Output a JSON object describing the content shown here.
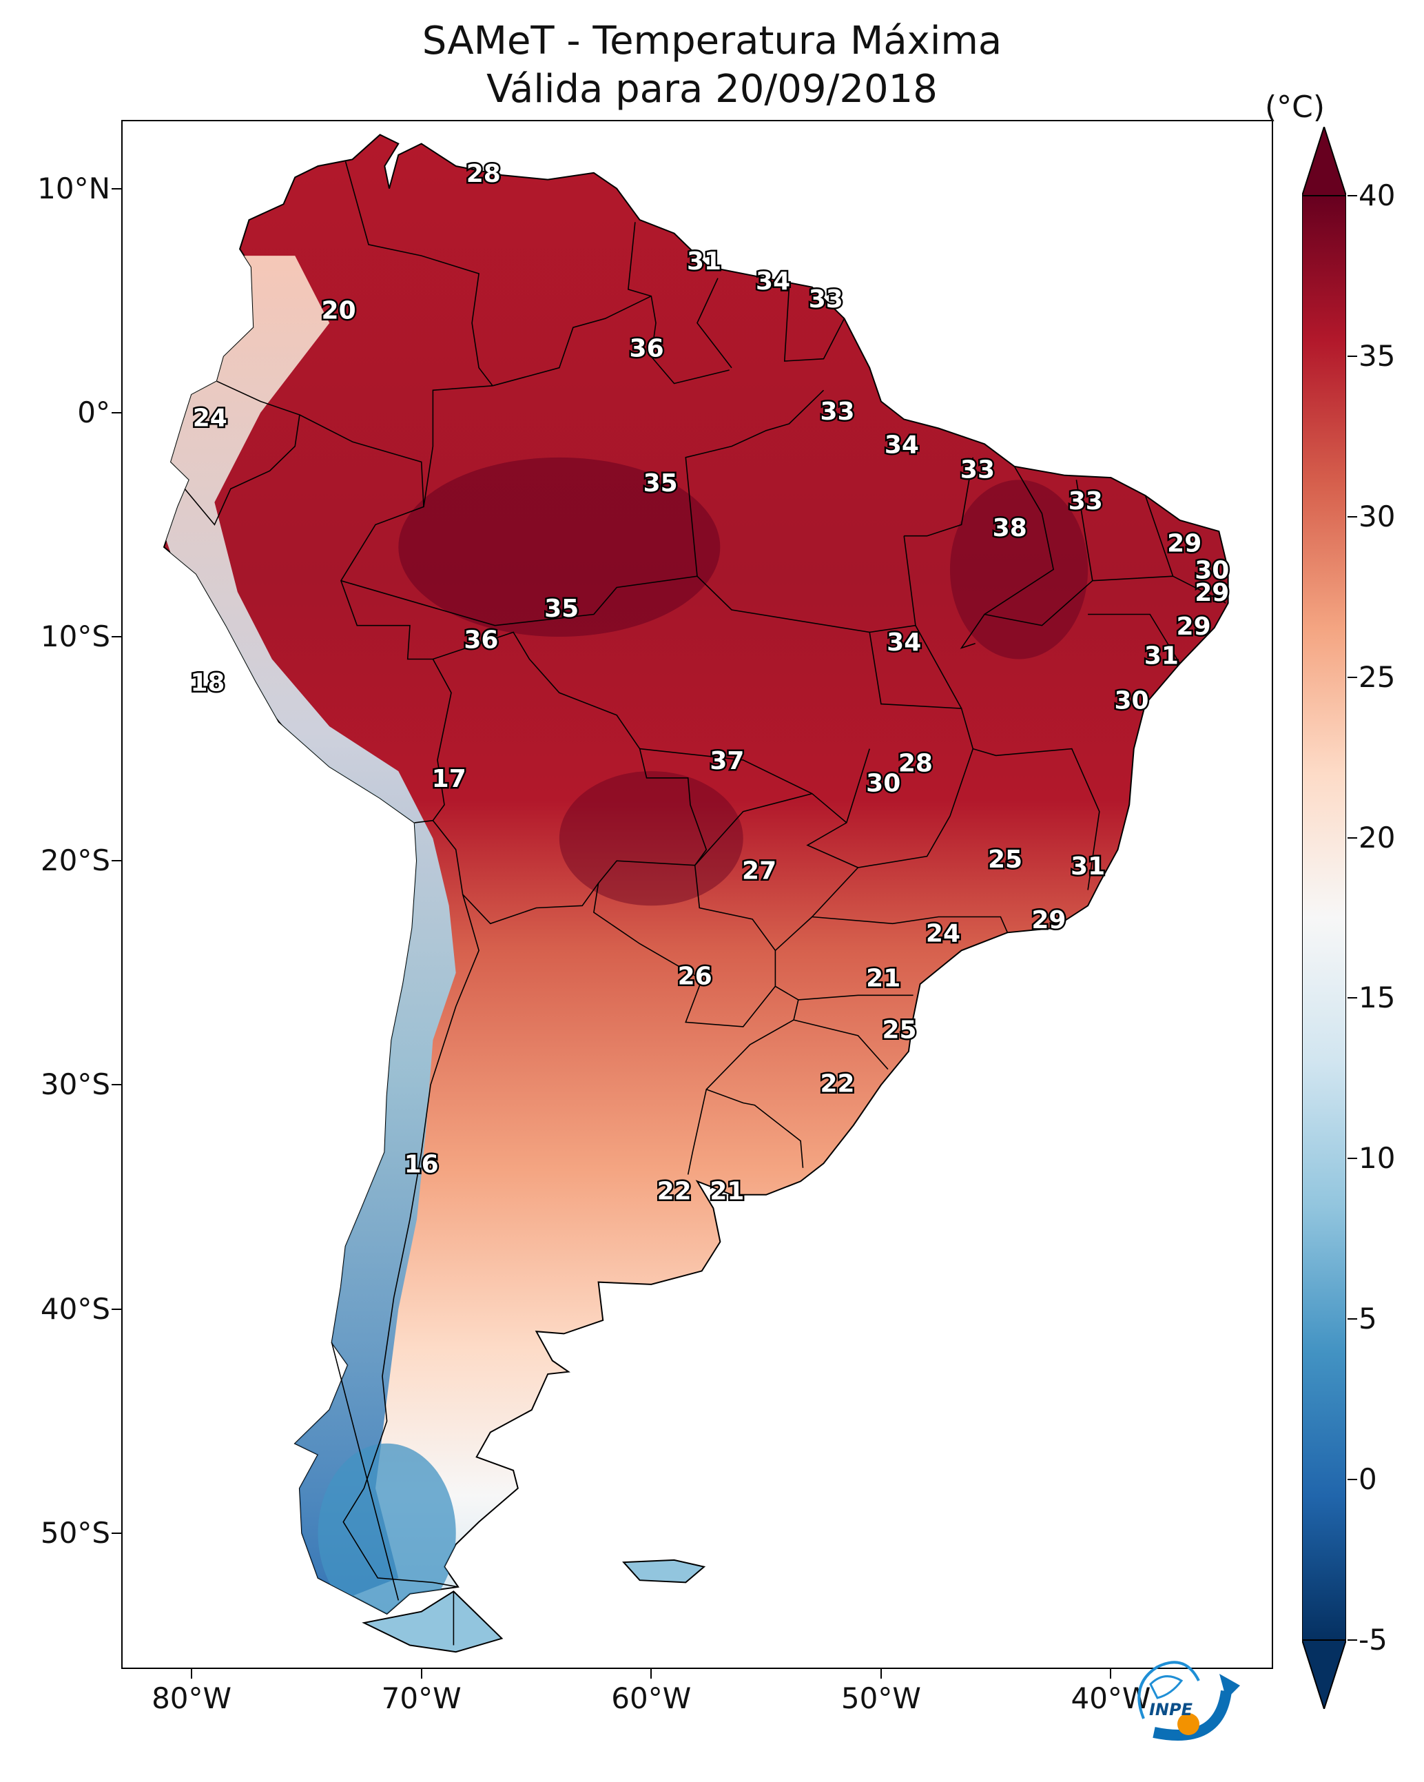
{
  "title_line1": "SAMeT - Temperatura Máxima",
  "title_line2": "Válida para 20/09/2018",
  "colorbar": {
    "unit": "(°C)",
    "min": -5,
    "max": 40,
    "ticks": [
      "40",
      "35",
      "30",
      "25",
      "20",
      "15",
      "10",
      "5",
      "0",
      "-5"
    ],
    "colors": [
      "#053061",
      "#2166ac",
      "#4393c3",
      "#92c5de",
      "#d1e5f0",
      "#f7f7f7",
      "#fddbc7",
      "#f4a582",
      "#d6604d",
      "#b2182b",
      "#67001f"
    ]
  },
  "axes": {
    "lat_ticks": [
      "10°N",
      "0°",
      "10°S",
      "20°S",
      "30°S",
      "40°S",
      "50°S"
    ],
    "lon_ticks": [
      "80°W",
      "70°W",
      "60°W",
      "50°W",
      "40°W"
    ],
    "extent": {
      "lon_min": -83,
      "lon_max": -33,
      "lat_min": -56,
      "lat_max": 13
    }
  },
  "contour_labels": [
    {
      "text": "28",
      "lon": -67.3,
      "lat": 10.6
    },
    {
      "text": "20",
      "lon": -73.6,
      "lat": 4.5
    },
    {
      "text": "31",
      "lon": -57.7,
      "lat": 6.7
    },
    {
      "text": "34",
      "lon": -54.7,
      "lat": 5.8
    },
    {
      "text": "33",
      "lon": -52.4,
      "lat": 5.0
    },
    {
      "text": "36",
      "lon": -60.2,
      "lat": 2.8
    },
    {
      "text": "24",
      "lon": -79.2,
      "lat": -0.3
    },
    {
      "text": "33",
      "lon": -51.9,
      "lat": 0.0
    },
    {
      "text": "34",
      "lon": -49.1,
      "lat": -1.5
    },
    {
      "text": "33",
      "lon": -45.8,
      "lat": -2.6
    },
    {
      "text": "35",
      "lon": -59.6,
      "lat": -3.2
    },
    {
      "text": "33",
      "lon": -41.1,
      "lat": -4.0
    },
    {
      "text": "38",
      "lon": -44.4,
      "lat": -5.2
    },
    {
      "text": "29",
      "lon": -36.8,
      "lat": -5.9
    },
    {
      "text": "30",
      "lon": -35.6,
      "lat": -7.1
    },
    {
      "text": "29",
      "lon": -35.6,
      "lat": -8.1
    },
    {
      "text": "35",
      "lon": -63.9,
      "lat": -8.8
    },
    {
      "text": "36",
      "lon": -67.4,
      "lat": -10.2
    },
    {
      "text": "34",
      "lon": -49.0,
      "lat": -10.3
    },
    {
      "text": "29",
      "lon": -36.4,
      "lat": -9.6
    },
    {
      "text": "31",
      "lon": -37.8,
      "lat": -10.9
    },
    {
      "text": "18",
      "lon": -79.3,
      "lat": -12.1
    },
    {
      "text": "30",
      "lon": -39.1,
      "lat": -12.9
    },
    {
      "text": "37",
      "lon": -56.7,
      "lat": -15.6
    },
    {
      "text": "28",
      "lon": -48.5,
      "lat": -15.7
    },
    {
      "text": "30",
      "lon": -49.9,
      "lat": -16.6
    },
    {
      "text": "17",
      "lon": -68.8,
      "lat": -16.4
    },
    {
      "text": "25",
      "lon": -44.6,
      "lat": -20.0
    },
    {
      "text": "27",
      "lon": -55.3,
      "lat": -20.5
    },
    {
      "text": "31",
      "lon": -41.0,
      "lat": -20.3
    },
    {
      "text": "29",
      "lon": -42.7,
      "lat": -22.7
    },
    {
      "text": "24",
      "lon": -47.3,
      "lat": -23.3
    },
    {
      "text": "26",
      "lon": -58.1,
      "lat": -25.2
    },
    {
      "text": "21",
      "lon": -49.9,
      "lat": -25.3
    },
    {
      "text": "25",
      "lon": -49.2,
      "lat": -27.6
    },
    {
      "text": "22",
      "lon": -51.9,
      "lat": -30.0
    },
    {
      "text": "16",
      "lon": -70.0,
      "lat": -33.6
    },
    {
      "text": "22",
      "lon": -59.0,
      "lat": -34.8
    },
    {
      "text": "21",
      "lon": -56.7,
      "lat": -34.8
    }
  ],
  "logo": {
    "text": "INPE",
    "name": "inpe-logo"
  }
}
